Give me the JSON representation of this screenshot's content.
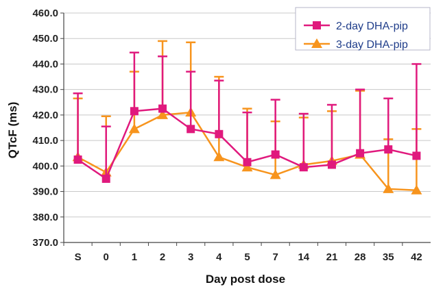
{
  "chart_data": {
    "type": "line",
    "title": "",
    "xlabel": "Day post dose",
    "ylabel": "QTcF (ms)",
    "categories": [
      "S",
      "0",
      "1",
      "2",
      "3",
      "4",
      "5",
      "7",
      "14",
      "21",
      "28",
      "35",
      "42"
    ],
    "ylim": [
      370,
      460
    ],
    "yticks": [
      "370.0",
      "380.0",
      "390.0",
      "400.0",
      "410.0",
      "420.0",
      "430.0",
      "440.0",
      "450.0",
      "460.0"
    ],
    "grid": true,
    "legend_position": "top-right",
    "series": [
      {
        "name": "2-day DHA-pip",
        "color": "#e0197d",
        "marker": "square",
        "values": [
          402.5,
          395.0,
          421.5,
          422.5,
          414.5,
          412.5,
          401.5,
          404.5,
          399.5,
          400.5,
          405.0,
          406.5,
          404.0
        ],
        "upper": [
          428.5,
          415.5,
          444.5,
          443.0,
          437.0,
          433.5,
          421.0,
          426.0,
          420.5,
          424.0,
          430.0,
          426.5,
          440.0
        ]
      },
      {
        "name": "3-day DHA-pip",
        "color": "#f7941d",
        "marker": "triangle",
        "values": [
          403.5,
          397.5,
          414.5,
          420.0,
          421.0,
          403.5,
          399.5,
          396.5,
          400.5,
          402.0,
          404.5,
          391.0,
          390.5
        ],
        "upper": [
          426.5,
          419.5,
          437.0,
          449.0,
          448.5,
          435.0,
          422.5,
          417.5,
          419.0,
          421.5,
          429.5,
          410.5,
          414.5
        ]
      }
    ]
  }
}
